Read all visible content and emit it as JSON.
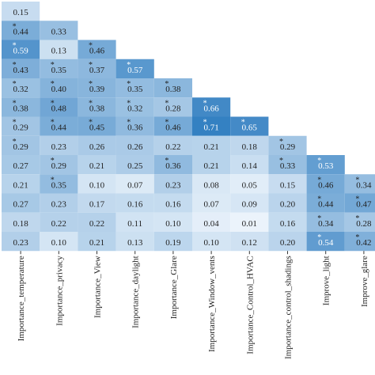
{
  "chart_data": {
    "type": "heatmap",
    "columns": [
      "Importance_temperature",
      "Importance_privacy",
      "Importance_View",
      "Importance_daylight",
      "Importance_Glare",
      "Importance_Window_vents",
      "Importance_Control_HVAC",
      "Importance_control_shadings",
      "Improve_light",
      "Improve_glare"
    ],
    "values": [
      [
        0.15
      ],
      [
        0.44,
        0.33
      ],
      [
        0.59,
        0.13,
        0.46
      ],
      [
        0.43,
        0.35,
        0.37,
        0.57
      ],
      [
        0.32,
        0.4,
        0.39,
        0.35,
        0.38
      ],
      [
        0.38,
        0.48,
        0.38,
        0.32,
        0.28,
        0.66
      ],
      [
        0.29,
        0.44,
        0.45,
        0.36,
        0.46,
        0.71,
        0.65
      ],
      [
        0.29,
        0.23,
        0.26,
        0.26,
        0.22,
        0.21,
        0.18,
        0.29
      ],
      [
        0.27,
        0.29,
        0.21,
        0.25,
        0.36,
        0.21,
        0.14,
        0.33,
        0.53
      ],
      [
        0.21,
        0.35,
        0.1,
        0.07,
        0.23,
        0.08,
        0.05,
        0.15,
        0.46,
        0.34
      ],
      [
        0.27,
        0.23,
        0.17,
        0.16,
        0.16,
        0.07,
        0.09,
        0.2,
        0.44,
        0.47
      ],
      [
        0.18,
        0.22,
        0.22,
        0.11,
        0.1,
        0.04,
        0.01,
        0.16,
        0.34,
        0.28
      ],
      [
        0.23,
        0.1,
        0.21,
        0.13,
        0.19,
        0.1,
        0.12,
        0.2,
        0.54,
        0.42
      ]
    ],
    "value_labels": [
      [
        "0.15"
      ],
      [
        "0.44",
        "0.33"
      ],
      [
        "0.59",
        "0.13",
        "0.46"
      ],
      [
        "0.43",
        "0.35",
        "0.37",
        "0.57"
      ],
      [
        "0.32",
        "0.40",
        "0.39",
        "0.35",
        "0.38"
      ],
      [
        "0.38",
        "0.48",
        "0.38",
        "0.32",
        "0.28",
        "0.66"
      ],
      [
        "0.29",
        "0.44",
        "0.45",
        "0.36",
        "0.46",
        "0.71",
        "0.65"
      ],
      [
        "0.29",
        "0.23",
        "0.26",
        "0.26",
        "0.22",
        "0.21",
        "0.18",
        "0.29"
      ],
      [
        "0.27",
        "0.29",
        "0.21",
        "0.25",
        "0.36",
        "0.21",
        "0.14",
        "0.33",
        "0.53"
      ],
      [
        "0.21",
        "0.35",
        "0.10",
        "0.07",
        "0.23",
        "0.08",
        "0.05",
        "0.15",
        "0.46",
        "0.34"
      ],
      [
        "0.27",
        "0.23",
        "0.17",
        "0.16",
        "0.16",
        "0.07",
        "0.09",
        "0.20",
        "0.44",
        "0.47"
      ],
      [
        "0.18",
        "0.22",
        "0.22",
        "0.11",
        "0.10",
        "0.04",
        "0.01",
        "0.16",
        "0.34",
        "0.28"
      ],
      [
        "0.23",
        "0.10",
        "0.21",
        "0.13",
        "0.19",
        "0.10",
        "0.12",
        "0.20",
        "0.54",
        "0.42"
      ]
    ],
    "stars": [
      [
        null
      ],
      [
        "*",
        null
      ],
      [
        "*",
        null,
        "*"
      ],
      [
        "*",
        "*",
        "*",
        "*"
      ],
      [
        "*",
        "*",
        "*",
        "*",
        "*"
      ],
      [
        "*",
        "*",
        "*",
        "*",
        "*",
        "*"
      ],
      [
        "*",
        "*",
        "*",
        "*",
        "*",
        "*",
        "*"
      ],
      [
        "*",
        null,
        null,
        null,
        null,
        null,
        null,
        "*"
      ],
      [
        null,
        "*",
        null,
        null,
        "*",
        null,
        null,
        "*",
        "*"
      ],
      [
        null,
        "*",
        null,
        null,
        null,
        null,
        null,
        null,
        "*",
        "*"
      ],
      [
        null,
        null,
        null,
        null,
        null,
        null,
        null,
        null,
        "*",
        "*"
      ],
      [
        null,
        null,
        null,
        null,
        null,
        null,
        null,
        null,
        "*",
        "*"
      ],
      [
        null,
        null,
        null,
        null,
        null,
        null,
        null,
        null,
        "*",
        "*"
      ]
    ],
    "color_low": "#eef5fc",
    "color_high": "#2a7abf",
    "color_range": [
      0,
      0.75
    ]
  }
}
